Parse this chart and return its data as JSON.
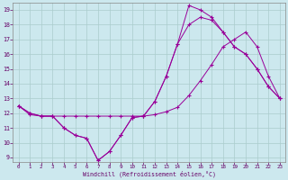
{
  "xlabel": "Windchill (Refroidissement éolien,°C)",
  "bg_color": "#cce8ee",
  "line_color": "#990099",
  "grid_color": "#aacccc",
  "xlim": [
    -0.5,
    23.5
  ],
  "ylim": [
    8.7,
    19.5
  ],
  "xticks": [
    0,
    1,
    2,
    3,
    4,
    5,
    6,
    7,
    8,
    9,
    10,
    11,
    12,
    13,
    14,
    15,
    16,
    17,
    18,
    19,
    20,
    21,
    22,
    23
  ],
  "yticks": [
    9,
    10,
    11,
    12,
    13,
    14,
    15,
    16,
    17,
    18,
    19
  ],
  "s1": [
    12.5,
    12.0,
    11.8,
    11.8,
    11.0,
    10.5,
    10.3,
    8.8,
    9.4,
    10.5,
    11.7,
    11.8,
    12.8,
    14.5,
    16.7,
    19.3,
    19.0,
    18.5,
    17.5,
    16.5,
    16.0,
    15.0,
    13.8,
    13.0
  ],
  "s2": [
    12.5,
    12.0,
    11.8,
    11.8,
    11.0,
    10.5,
    10.3,
    8.8,
    9.4,
    10.5,
    11.7,
    11.8,
    12.8,
    14.5,
    16.7,
    18.0,
    18.5,
    18.3,
    17.5,
    16.5,
    16.0,
    15.0,
    13.8,
    13.0
  ],
  "s3": [
    12.5,
    11.9,
    11.8,
    11.8,
    11.8,
    11.8,
    11.8,
    11.8,
    11.8,
    11.8,
    11.8,
    11.8,
    11.9,
    12.1,
    12.4,
    13.2,
    14.2,
    15.3,
    16.5,
    17.0,
    17.5,
    16.5,
    14.5,
    13.0
  ]
}
